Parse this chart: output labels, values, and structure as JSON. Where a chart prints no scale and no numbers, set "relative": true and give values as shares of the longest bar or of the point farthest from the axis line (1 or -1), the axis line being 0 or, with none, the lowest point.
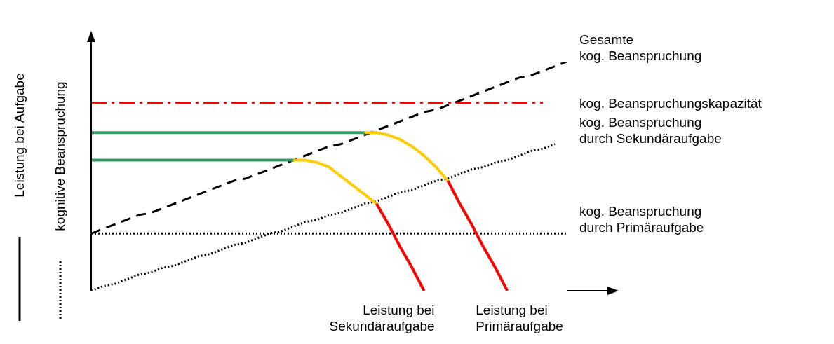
{
  "chart_data": {
    "type": "line",
    "relative": true,
    "ylabel": "Leistung bei Aufgabe",
    "marker": "none",
    "annotations": [
      "kognitive Beanspruchung",
      "Leistung bei\nSekundäraufgabe",
      "Leistung bei\nPrimäraufgabe"
    ],
    "categories": [
      null,
      null,
      null,
      null,
      null,
      null,
      null,
      null,
      null,
      null,
      null,
      null,
      null,
      null,
      null,
      null,
      null,
      null,
      null,
      null,
      null,
      null,
      null,
      null,
      null,
      null,
      null,
      null,
      null,
      null,
      null,
      null,
      null,
      null,
      null,
      null,
      null,
      null,
      null,
      null,
      null
    ],
    "series": [
      {
        "name": "Gesamte\nkog. Beanspruchung",
        "color": "#000000",
        "line_style": "dashed",
        "values": [
          0.25,
          0.27,
          0.29,
          0.31,
          0.33,
          0.34,
          0.36,
          0.38,
          0.4,
          0.42,
          0.44,
          0.46,
          0.48,
          0.49,
          0.51,
          0.53,
          0.55,
          0.57,
          0.59,
          0.61,
          0.63,
          0.64,
          0.66,
          0.68,
          0.7,
          0.72,
          0.74,
          0.76,
          0.78,
          0.79,
          0.81,
          0.83,
          0.85,
          0.87,
          0.89,
          0.91,
          0.93,
          0.94,
          0.96,
          0.98,
          1.0
        ]
      },
      {
        "name": "kog. Beanspruchungskapazität",
        "color": "#ff0000",
        "line_style": "dashdot",
        "values": [
          0.82,
          0.82,
          0.82,
          0.82,
          0.82,
          0.82,
          0.82,
          0.82,
          0.82,
          0.82,
          0.82,
          0.82,
          0.82,
          0.82,
          0.82,
          0.82,
          0.82,
          0.82,
          0.82,
          0.82,
          0.82,
          0.82,
          0.82,
          0.82,
          0.82,
          0.82,
          0.82,
          0.82,
          0.82,
          0.82,
          0.82,
          0.82,
          0.82,
          0.82,
          0.82,
          0.82,
          0.82,
          0.82,
          0.82,
          null,
          null
        ]
      },
      {
        "name": "kog. Beanspruchung\ndurch Sekundäraufgabe",
        "color": "#000000",
        "line_style": "dotted",
        "values": [
          0,
          0.02,
          0.03,
          0.05,
          0.07,
          0.08,
          0.1,
          0.11,
          0.13,
          0.15,
          0.16,
          0.18,
          0.2,
          0.21,
          0.23,
          0.25,
          0.26,
          0.28,
          0.3,
          0.31,
          0.33,
          0.34,
          0.36,
          0.38,
          0.39,
          0.41,
          0.43,
          0.44,
          0.46,
          0.48,
          0.49,
          0.51,
          0.53,
          0.54,
          0.56,
          0.57,
          0.59,
          0.61,
          0.62,
          0.64,
          null
        ]
      },
      {
        "name": "kog. Beanspruchung\ndurch Primäraufgabe",
        "color": "#000000",
        "line_style": "dotted",
        "values": [
          0.25,
          0.25,
          0.25,
          0.25,
          0.25,
          0.25,
          0.25,
          0.25,
          0.25,
          0.25,
          0.25,
          0.25,
          0.25,
          0.25,
          0.25,
          0.25,
          0.25,
          0.25,
          0.25,
          0.25,
          0.25,
          0.25,
          0.25,
          0.25,
          0.25,
          0.25,
          0.25,
          0.25,
          0.25,
          0.25,
          0.25,
          0.25,
          0.25,
          0.25,
          0.25,
          0.25,
          0.25,
          0.25,
          0.25,
          0.25,
          0.25
        ]
      },
      {
        "color": "#3a9a6a",
        "line_style": "solid",
        "values": [
          0.69,
          0.69,
          0.69,
          0.69,
          0.69,
          0.69,
          0.69,
          0.69,
          0.69,
          0.69,
          0.69,
          0.69,
          0.69,
          0.69,
          0.69,
          0.69,
          0.69,
          0.69,
          0.69,
          0.69,
          0.69,
          0.69,
          0.69,
          0.69,
          null,
          null,
          null,
          null,
          null,
          null,
          null,
          null,
          null,
          null,
          null,
          null,
          null,
          null,
          null,
          null,
          null
        ]
      },
      {
        "color": "#ffcc00",
        "line_style": "solid",
        "values": [
          null,
          null,
          null,
          null,
          null,
          null,
          null,
          null,
          null,
          null,
          null,
          null,
          null,
          null,
          null,
          null,
          null,
          null,
          null,
          null,
          null,
          null,
          null,
          0.69,
          0.69,
          0.68,
          0.66,
          0.63,
          0.59,
          0.54,
          0.48,
          null,
          null,
          null,
          null,
          null,
          null,
          null,
          null,
          null,
          null
        ]
      },
      {
        "color": "#ff0000",
        "line_style": "solid",
        "values": [
          null,
          null,
          null,
          null,
          null,
          null,
          null,
          null,
          null,
          null,
          null,
          null,
          null,
          null,
          null,
          null,
          null,
          null,
          null,
          null,
          null,
          null,
          null,
          null,
          null,
          null,
          null,
          null,
          null,
          null,
          0.48,
          0.38,
          0.29,
          0.19,
          0.1,
          0,
          null,
          null,
          null,
          null,
          null
        ]
      },
      {
        "color": "#3a9a6a",
        "line_style": "solid",
        "values": [
          0.57,
          0.57,
          0.57,
          0.57,
          0.57,
          0.57,
          0.57,
          0.57,
          0.57,
          0.57,
          0.57,
          0.57,
          0.57,
          0.57,
          0.57,
          0.57,
          0.57,
          0.57,
          null,
          null,
          null,
          null,
          null,
          null,
          null,
          null,
          null,
          null,
          null,
          null,
          null,
          null,
          null,
          null,
          null,
          null,
          null,
          null,
          null,
          null,
          null
        ]
      },
      {
        "color": "#ffcc00",
        "line_style": "solid",
        "values": [
          null,
          null,
          null,
          null,
          null,
          null,
          null,
          null,
          null,
          null,
          null,
          null,
          null,
          null,
          null,
          null,
          null,
          0.57,
          0.57,
          0.56,
          0.54,
          0.5,
          0.46,
          0.42,
          0.38,
          null,
          null,
          null,
          null,
          null,
          null,
          null,
          null,
          null,
          null,
          null,
          null,
          null,
          null,
          null,
          null
        ]
      },
      {
        "color": "#ff0000",
        "line_style": "solid",
        "values": [
          null,
          null,
          null,
          null,
          null,
          null,
          null,
          null,
          null,
          null,
          null,
          null,
          null,
          null,
          null,
          null,
          null,
          null,
          null,
          null,
          null,
          null,
          null,
          null,
          0.38,
          0.29,
          0.19,
          0.1,
          0,
          null,
          null,
          null,
          null,
          null,
          null,
          null,
          null,
          null,
          null,
          null,
          null
        ]
      }
    ]
  }
}
